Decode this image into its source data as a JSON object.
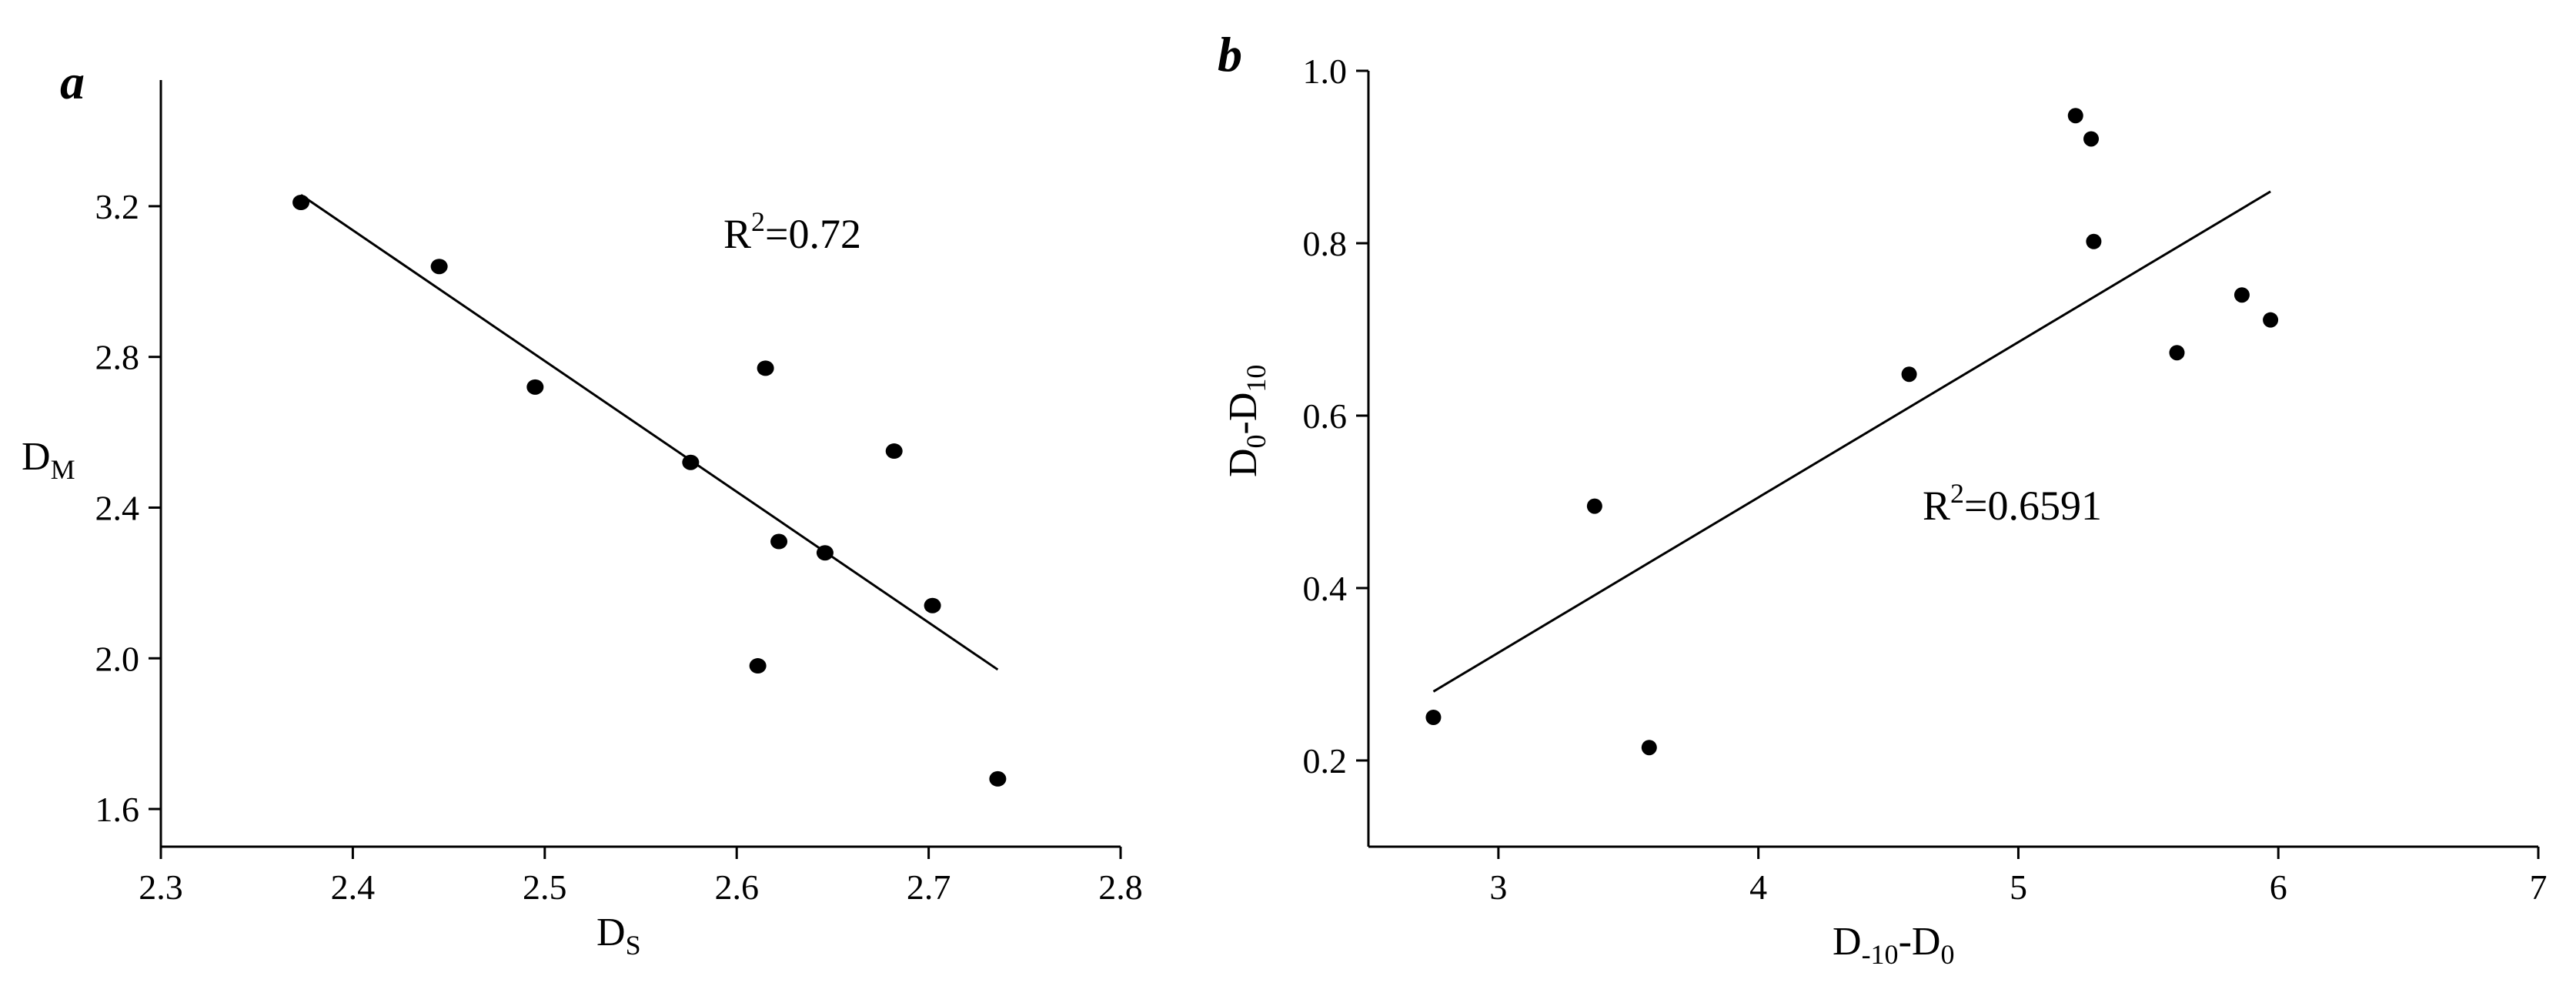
{
  "chart_data": [
    {
      "type": "scatter",
      "panel_label": "a",
      "xlabel": {
        "main": "D",
        "sub": "S"
      },
      "ylabel": {
        "main": "D",
        "sub": "M"
      },
      "xlim": [
        2.3,
        2.8
      ],
      "ylim": [
        1.5,
        3.4
      ],
      "xticks": [
        2.3,
        2.4,
        2.5,
        2.6,
        2.7,
        2.8
      ],
      "xtick_labels": [
        "2.3",
        "2.4",
        "2.5",
        "2.6",
        "2.7",
        "2.8"
      ],
      "yticks": [
        1.6,
        2.0,
        2.4,
        2.8,
        3.2
      ],
      "ytick_labels": [
        "1.6",
        "2.0",
        "2.4",
        "2.8",
        "3.2"
      ],
      "points": [
        {
          "x": 2.373,
          "y": 3.21
        },
        {
          "x": 2.445,
          "y": 3.04
        },
        {
          "x": 2.495,
          "y": 2.72
        },
        {
          "x": 2.576,
          "y": 2.52
        },
        {
          "x": 2.615,
          "y": 2.77
        },
        {
          "x": 2.622,
          "y": 2.31
        },
        {
          "x": 2.646,
          "y": 2.28
        },
        {
          "x": 2.682,
          "y": 2.55
        },
        {
          "x": 2.702,
          "y": 2.14
        },
        {
          "x": 2.611,
          "y": 1.98
        },
        {
          "x": 2.736,
          "y": 1.68
        }
      ],
      "fit_line": {
        "x": [
          2.373,
          2.736
        ],
        "y": [
          3.23,
          1.97
        ]
      },
      "annotation": {
        "prefix": "R",
        "sup": "2",
        "rest": "=0.72"
      },
      "grid": false
    },
    {
      "type": "scatter",
      "panel_label": "b",
      "xlabel": {
        "p1": "D",
        "s1": "-10",
        "p2": "-D",
        "s2": "0"
      },
      "ylabel": {
        "p1": "D",
        "s1": "0",
        "p2": "-D",
        "s2": "10"
      },
      "xlim": [
        2.5,
        7
      ],
      "ylim": [
        0.1,
        1.0
      ],
      "xticks": [
        3,
        4,
        5,
        6,
        7
      ],
      "xtick_labels": [
        "3",
        "4",
        "5",
        "6",
        "7"
      ],
      "yticks": [
        0.2,
        0.4,
        0.6,
        0.8,
        1.0
      ],
      "ytick_labels": [
        "0.2",
        "0.4",
        "0.6",
        "0.8",
        "1.0"
      ],
      "points": [
        {
          "x": 2.75,
          "y": 0.25
        },
        {
          "x": 3.37,
          "y": 0.495
        },
        {
          "x": 3.58,
          "y": 0.215
        },
        {
          "x": 4.58,
          "y": 0.648
        },
        {
          "x": 5.22,
          "y": 0.948
        },
        {
          "x": 5.28,
          "y": 0.921
        },
        {
          "x": 5.29,
          "y": 0.802
        },
        {
          "x": 5.61,
          "y": 0.673
        },
        {
          "x": 5.86,
          "y": 0.74
        },
        {
          "x": 5.97,
          "y": 0.711
        }
      ],
      "fit_line": {
        "x": [
          2.75,
          5.97
        ],
        "y": [
          0.28,
          0.86
        ]
      },
      "annotation": {
        "prefix": "R",
        "sup": "2",
        "rest": "=0.6591"
      },
      "grid": false
    }
  ]
}
